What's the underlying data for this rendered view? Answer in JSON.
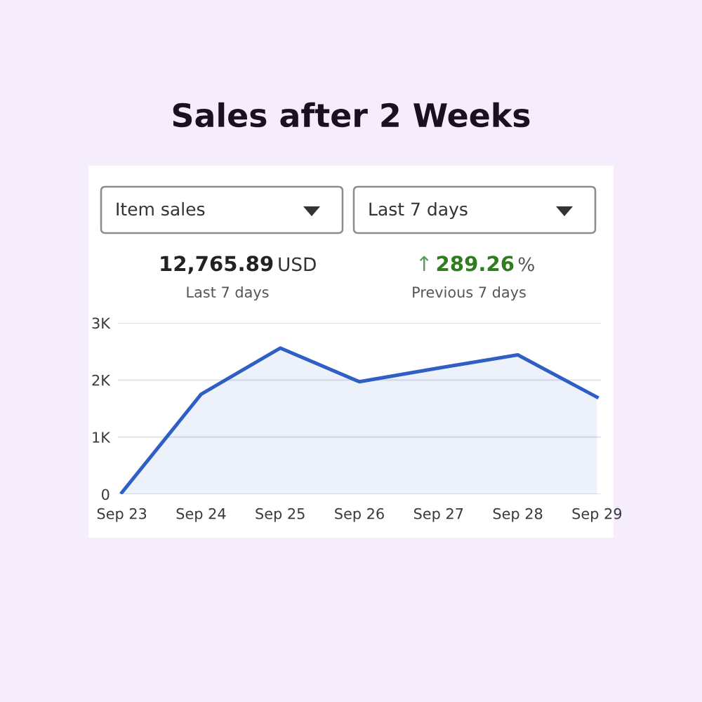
{
  "chart_data": {
    "type": "area",
    "title": "Sales after 2 Weeks",
    "categories": [
      "Sep 23",
      "Sep 24",
      "Sep 25",
      "Sep 26",
      "Sep 27",
      "Sep 28",
      "Sep 29"
    ],
    "values": [
      30,
      1750,
      2560,
      1970,
      2210,
      2440,
      1700
    ],
    "color": "#2f5fc4",
    "ylim": [
      0,
      3000
    ],
    "yticks": [
      0,
      {
        "value": 1000,
        "label": "1K"
      },
      {
        "value": 2000,
        "label": "2K"
      },
      {
        "value": 3000,
        "label": "3K"
      }
    ],
    "grid": "y",
    "marker": "none",
    "line_style": "solid",
    "annotations": [
      "Item sales",
      "Last 7 days",
      "12,765.89",
      "USD",
      "Last 7 days",
      "↑",
      "289.26",
      "%",
      "Previous 7 days"
    ]
  }
}
